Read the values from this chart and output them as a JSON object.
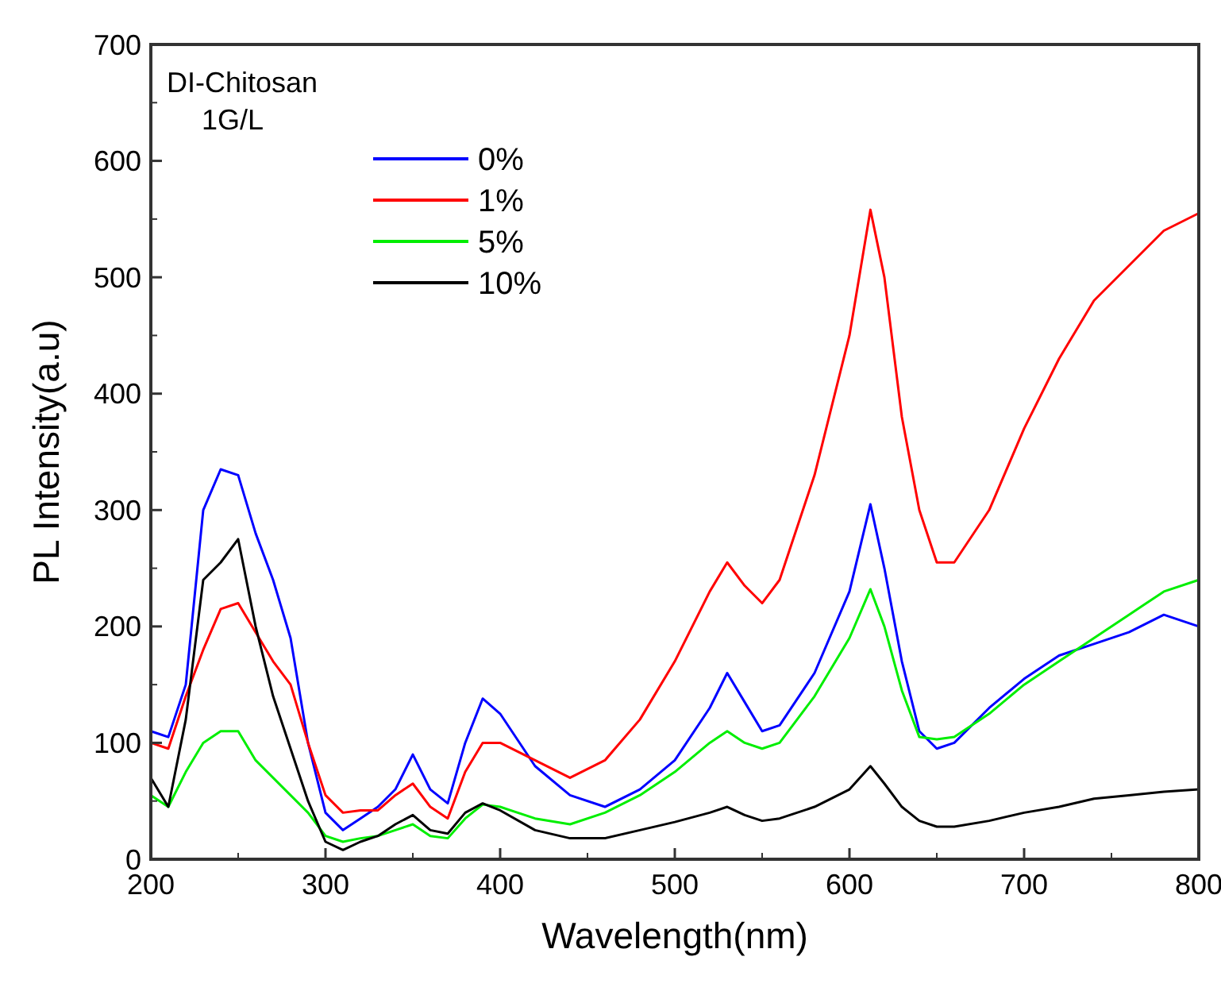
{
  "chart_data": {
    "type": "line",
    "xlabel": "Wavelength(nm)",
    "ylabel": "PL Intensity(a.u)",
    "legend_title": "DI-Chitosan 1G/L",
    "legend": "top left",
    "grid": false,
    "xlim": [
      200,
      800
    ],
    "ylim": [
      0,
      700
    ],
    "xticks": [
      200,
      300,
      400,
      500,
      600,
      700,
      800
    ],
    "yticks": [
      0,
      100,
      200,
      300,
      400,
      500,
      600,
      700
    ],
    "x": [
      200,
      210,
      220,
      230,
      240,
      250,
      260,
      270,
      280,
      290,
      300,
      310,
      320,
      330,
      340,
      350,
      360,
      370,
      380,
      390,
      400,
      420,
      440,
      460,
      480,
      500,
      520,
      530,
      540,
      550,
      560,
      580,
      600,
      612,
      620,
      630,
      640,
      650,
      660,
      680,
      700,
      720,
      740,
      760,
      780,
      800
    ],
    "series": [
      {
        "name": "0%",
        "color": "#0000ff",
        "values": [
          110,
          105,
          150,
          300,
          335,
          330,
          280,
          240,
          190,
          100,
          40,
          25,
          35,
          45,
          60,
          90,
          60,
          48,
          100,
          138,
          125,
          80,
          55,
          45,
          60,
          85,
          130,
          160,
          135,
          110,
          115,
          160,
          230,
          305,
          250,
          170,
          110,
          95,
          100,
          130,
          155,
          175,
          185,
          195,
          210,
          200
        ]
      },
      {
        "name": "1%",
        "color": "#ff0000",
        "values": [
          100,
          95,
          140,
          180,
          215,
          220,
          195,
          170,
          150,
          100,
          55,
          40,
          42,
          42,
          55,
          65,
          45,
          35,
          75,
          100,
          100,
          85,
          70,
          85,
          120,
          170,
          230,
          255,
          235,
          220,
          240,
          330,
          450,
          558,
          500,
          380,
          300,
          255,
          255,
          300,
          370,
          430,
          480,
          510,
          540,
          555
        ]
      },
      {
        "name": "5%",
        "color": "#00ee00",
        "values": [
          55,
          45,
          75,
          100,
          110,
          110,
          85,
          70,
          55,
          40,
          20,
          15,
          18,
          20,
          25,
          30,
          20,
          18,
          35,
          47,
          45,
          35,
          30,
          40,
          55,
          75,
          100,
          110,
          100,
          95,
          100,
          140,
          190,
          232,
          200,
          145,
          105,
          103,
          105,
          125,
          150,
          170,
          190,
          210,
          230,
          240
        ]
      },
      {
        "name": "10%",
        "color": "#000000",
        "values": [
          70,
          45,
          120,
          240,
          255,
          275,
          200,
          140,
          95,
          50,
          15,
          8,
          15,
          20,
          30,
          38,
          25,
          22,
          40,
          48,
          42,
          25,
          18,
          18,
          25,
          32,
          40,
          45,
          38,
          33,
          35,
          45,
          60,
          80,
          65,
          45,
          33,
          28,
          28,
          33,
          40,
          45,
          52,
          55,
          58,
          60
        ]
      }
    ]
  }
}
